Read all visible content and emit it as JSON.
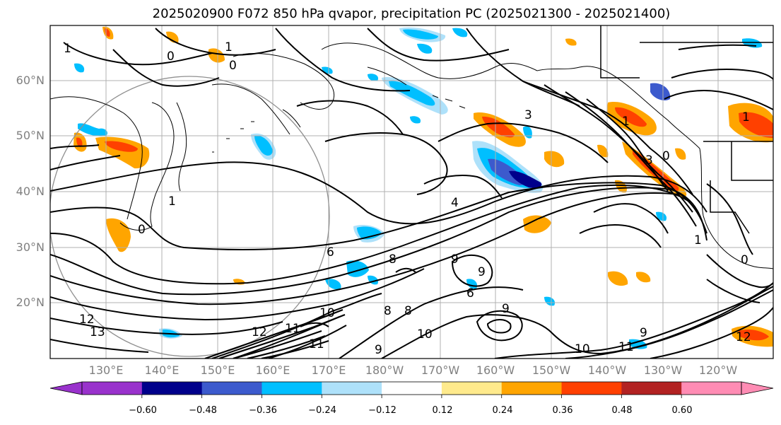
{
  "title": "2025020900 F072 850 hPa qvapor, precipitation PC (2025021300 - 2025021400)",
  "map": {
    "lat_labels": [
      "60°N",
      "50°N",
      "40°N",
      "30°N",
      "20°N"
    ],
    "lon_labels": [
      "130°E",
      "140°E",
      "150°E",
      "160°E",
      "170°E",
      "180°W",
      "170°W",
      "160°W",
      "150°W",
      "140°W",
      "130°W",
      "120°W"
    ],
    "contour_labels": [
      "1",
      "0",
      "0",
      "1",
      "3",
      "3",
      "1",
      "0",
      "1",
      "0",
      "4",
      "6",
      "8",
      "9",
      "9",
      "8",
      "8",
      "9",
      "10",
      "11",
      "12",
      "13",
      "12",
      "11",
      "10",
      "9",
      "10",
      "11",
      "9",
      "6",
      "12",
      "1",
      "0",
      "1"
    ]
  },
  "colorbar": {
    "colors": [
      "#9932cc",
      "#00008b",
      "#3c5acd",
      "#00bfff",
      "#aee1fa",
      "#ffffff",
      "#ffea8c",
      "#ffa500",
      "#ff4000",
      "#b22222",
      "#ff8cb4"
    ],
    "tick_labels": [
      "−0.60",
      "−0.48",
      "−0.36",
      "−0.24",
      "−0.12",
      "0.12",
      "0.24",
      "0.36",
      "0.48",
      "0.60"
    ]
  }
}
